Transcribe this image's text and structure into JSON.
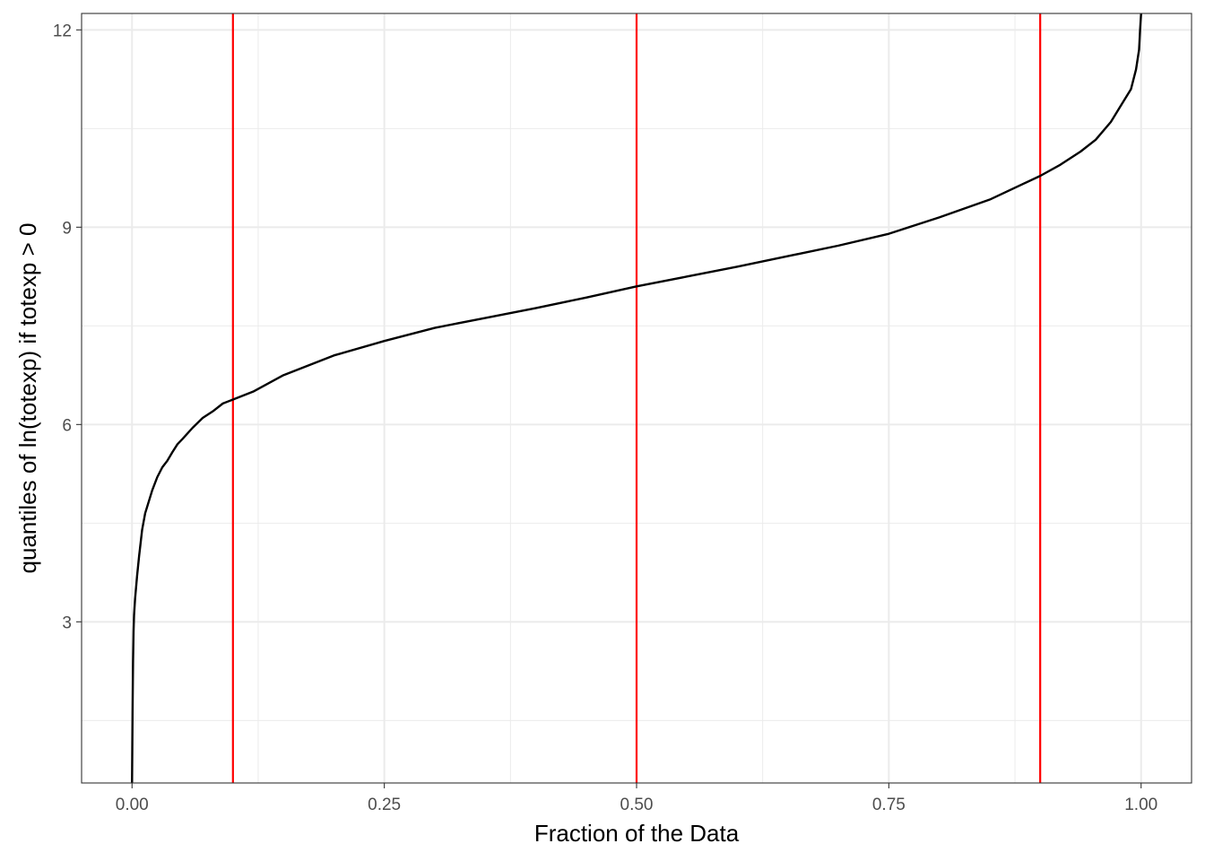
{
  "chart_data": {
    "type": "line",
    "title": "",
    "xlabel": "Fraction of the Data",
    "ylabel": "quantiles of ln(totexp) if totexp > 0",
    "xlim": [
      -0.05,
      1.05
    ],
    "ylim": [
      0.55,
      12.25
    ],
    "grid": true,
    "legend": "none",
    "x_ticks": [
      0,
      0.25,
      0.5,
      0.75,
      1
    ],
    "x_tick_labels": [
      "0.00",
      "0.25",
      "0.50",
      "0.75",
      "1.00"
    ],
    "y_ticks": [
      3,
      6,
      9,
      12
    ],
    "y_tick_labels": [
      "3",
      "6",
      "9",
      "12"
    ],
    "x_minor": [
      0.125,
      0.375,
      0.625,
      0.875
    ],
    "y_minor": [
      1.5,
      4.5,
      7.5,
      10.5
    ],
    "series": [
      {
        "x": [
          0,
          0.0005,
          0.001,
          0.0015,
          0.002,
          0.003,
          0.005,
          0.007,
          0.01,
          0.013,
          0.016,
          0.02,
          0.025,
          0.03,
          0.035,
          0.04,
          0.045,
          0.05,
          0.06,
          0.07,
          0.08,
          0.09,
          0.1,
          0.12,
          0.15,
          0.2,
          0.25,
          0.3,
          0.35,
          0.4,
          0.45,
          0.5,
          0.55,
          0.6,
          0.65,
          0.7,
          0.75,
          0.8,
          0.85,
          0.9,
          0.92,
          0.94,
          0.955,
          0.97,
          0.98,
          0.99,
          0.995,
          0.998,
          0.999,
          1.0
        ],
        "y": [
          0.55,
          1.6,
          2.4,
          2.85,
          3.1,
          3.35,
          3.7,
          4.0,
          4.4,
          4.65,
          4.8,
          5.0,
          5.2,
          5.35,
          5.45,
          5.58,
          5.7,
          5.78,
          5.95,
          6.1,
          6.2,
          6.32,
          6.38,
          6.5,
          6.75,
          7.05,
          7.27,
          7.47,
          7.62,
          7.77,
          7.93,
          8.1,
          8.25,
          8.4,
          8.56,
          8.72,
          8.9,
          9.15,
          9.42,
          9.78,
          9.95,
          10.15,
          10.33,
          10.6,
          10.85,
          11.1,
          11.4,
          11.7,
          12.0,
          12.25
        ],
        "color": "#000000"
      }
    ],
    "vlines": [
      {
        "x": 0.1,
        "color": "#ff0000"
      },
      {
        "x": 0.5,
        "color": "#ff0000"
      },
      {
        "x": 0.9,
        "color": "#ff0000"
      }
    ]
  }
}
